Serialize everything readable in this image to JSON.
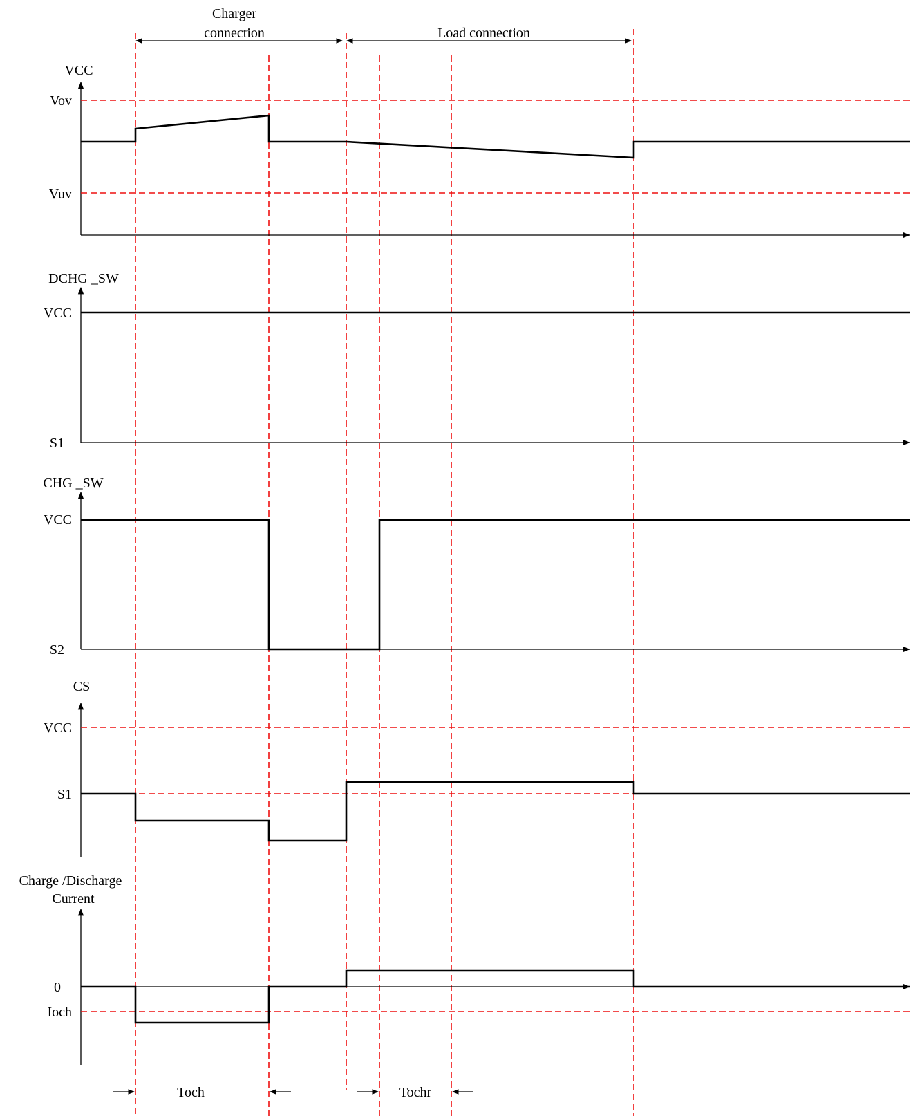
{
  "header": {
    "charger_connection_line1": "Charger",
    "charger_connection_line2": "connection",
    "load_connection": "Load connection"
  },
  "panels": {
    "vcc": {
      "axis_label": "VCC",
      "level_high": "Vov",
      "level_low": "Vuv"
    },
    "dchg_sw": {
      "axis_label": "DCHG _SW",
      "level_high": "VCC",
      "level_low": "S1"
    },
    "chg_sw": {
      "axis_label": "CHG _SW",
      "level_high": "VCC",
      "level_low": "S2"
    },
    "cs": {
      "axis_label": "CS",
      "level_high": "VCC",
      "level_mid": "S1"
    },
    "current": {
      "axis_label_line1": "Charge  /Discharge",
      "axis_label_line2": "Current",
      "level_zero": "0",
      "level_ioch": "Ioch"
    }
  },
  "timing": {
    "toch": "Toch",
    "tochr": "Tochr"
  },
  "colors": {
    "signal": "#000000",
    "reference": "#ee1111"
  }
}
